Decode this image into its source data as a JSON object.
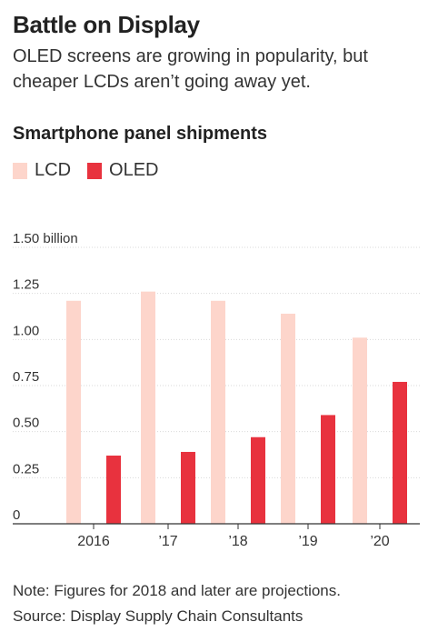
{
  "header": {
    "title": "Battle on Display",
    "subtitle": "OLED screens are growing in popularity, but cheaper LCDs aren’t going away yet."
  },
  "chart_data": {
    "type": "bar",
    "title": "Smartphone panel shipments",
    "categories": [
      "2016",
      "’17",
      "’18",
      "’19",
      "’20"
    ],
    "series": [
      {
        "name": "LCD",
        "values": [
          1.21,
          1.26,
          1.21,
          1.14,
          1.01
        ],
        "color": "#fdd5cb"
      },
      {
        "name": "OLED",
        "values": [
          0.37,
          0.39,
          0.47,
          0.59,
          0.77
        ],
        "color": "#e8323e"
      }
    ],
    "yticks": [
      "0",
      "0.25",
      "0.50",
      "0.75",
      "1.00",
      "1.25",
      "1.50 billion"
    ],
    "ylim": [
      0,
      1.5
    ],
    "grid": true,
    "legend_position": "top-left"
  },
  "footer": {
    "note": "Note: Figures for 2018 and later are projections.",
    "source": "Source: Display Supply Chain Consultants"
  }
}
